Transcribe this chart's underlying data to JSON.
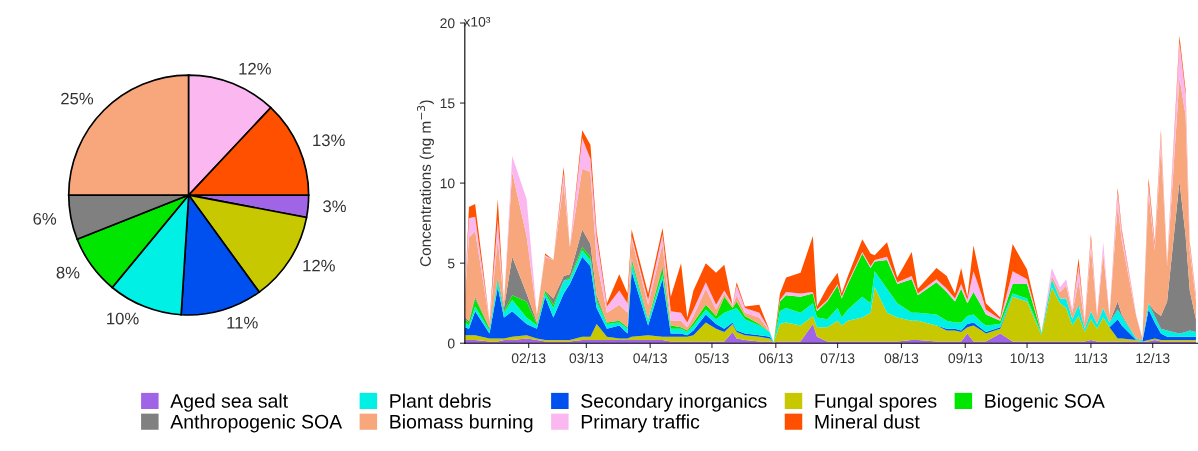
{
  "chart_data": [
    {
      "type": "pie",
      "legend": "bottom",
      "categories": [
        "Aged sea salt",
        "Fungal spores",
        "Secondary inorganics",
        "Plant debris",
        "Biogenic SOA",
        "Anthropogenic SOA",
        "Biomass burning",
        "Primary traffic",
        "Mineral dust"
      ],
      "values": [
        3,
        12,
        11,
        10,
        8,
        6,
        25,
        12,
        13
      ],
      "value_labels": [
        "3%",
        "12%",
        "11%",
        "10%",
        "8%",
        "6%",
        "25%",
        "12%",
        "13%"
      ],
      "colors": [
        "#a064e6",
        "#c8c800",
        "#0050f0",
        "#00f0e6",
        "#00e600",
        "#808080",
        "#f8a77c",
        "#fbb8f0",
        "#ff5000"
      ]
    },
    {
      "type": "area",
      "stacked": true,
      "ylabel": "Concentrations (ng m$^{−3}$)",
      "xlim": [
        "2013-01-01",
        "2013-12-23"
      ],
      "ylim": [
        0,
        20
      ],
      "xticks": [
        {
          "value": "2013-02-01",
          "label": "02/13"
        },
        {
          "value": "2013-03-01",
          "label": "03/13"
        },
        {
          "value": "2013-04-01",
          "label": "04/13"
        },
        {
          "value": "2013-05-01",
          "label": "05/13"
        },
        {
          "value": "2013-06-01",
          "label": "06/13"
        },
        {
          "value": "2013-07-01",
          "label": "07/13"
        },
        {
          "value": "2013-08-01",
          "label": "08/13"
        },
        {
          "value": "2013-09-01",
          "label": "09/13"
        },
        {
          "value": "2013-10-01",
          "label": "10/13"
        },
        {
          "value": "2013-11-01",
          "label": "11/13"
        },
        {
          "value": "2013-12-01",
          "label": "12/13"
        }
      ],
      "yticks": [
        0,
        5,
        10,
        15,
        20
      ],
      "annotations": [
        "x10³"
      ],
      "x": [
        "2013-01-01",
        "2013-01-03",
        "2013-01-06",
        "2013-01-13",
        "2013-01-17",
        "2013-01-20",
        "2013-01-24",
        "2013-01-31",
        "2013-02-05",
        "2013-02-09",
        "2013-02-13",
        "2013-02-18",
        "2013-02-21",
        "2013-02-27",
        "2013-03-03",
        "2013-03-06",
        "2013-03-11",
        "2013-03-17",
        "2013-03-21",
        "2013-03-23",
        "2013-03-31",
        "2013-04-07",
        "2013-04-11",
        "2013-04-16",
        "2013-04-19",
        "2013-04-22",
        "2013-04-28",
        "2013-05-03",
        "2013-05-07",
        "2013-05-11",
        "2013-05-13",
        "2013-05-17",
        "2013-05-24",
        "2013-05-29",
        "2013-05-31",
        "2013-06-03",
        "2013-06-06",
        "2013-06-13",
        "2013-06-19",
        "2013-06-21",
        "2013-06-26",
        "2013-07-01",
        "2013-07-03",
        "2013-07-06",
        "2013-07-13",
        "2013-07-17",
        "2013-07-19",
        "2013-07-25",
        "2013-07-30",
        "2013-08-06",
        "2013-08-09",
        "2013-08-18",
        "2013-08-23",
        "2013-08-27",
        "2013-08-30",
        "2013-09-02",
        "2013-09-05",
        "2013-09-09",
        "2013-09-11",
        "2013-09-18",
        "2013-09-24",
        "2013-10-01",
        "2013-10-08",
        "2013-10-13",
        "2013-10-17",
        "2013-10-20",
        "2013-10-23",
        "2013-10-26",
        "2013-10-29",
        "2013-11-01",
        "2013-11-04",
        "2013-11-07",
        "2013-11-10",
        "2013-11-14",
        "2013-11-16",
        "2013-11-23",
        "2013-11-26",
        "2013-11-29",
        "2013-12-02",
        "2013-12-05",
        "2013-12-08",
        "2013-12-14",
        "2013-12-17",
        "2013-12-19",
        "2013-12-22"
      ],
      "series": [
        {
          "color": "#a064e6",
          "values": [
            0.2,
            0.2,
            0.2,
            0.1,
            0.1,
            0.2,
            0.2,
            0.3,
            0.2,
            0.1,
            0.1,
            0.1,
            0.1,
            0.2,
            0.2,
            0.2,
            0.2,
            0.2,
            0.2,
            0.2,
            0.2,
            0.2,
            0.1,
            0.1,
            0.1,
            0.1,
            0.1,
            0.1,
            0.1,
            0.7,
            0.3,
            0.2,
            0.1,
            0.1,
            0.05,
            0.1,
            0.1,
            0.1,
            1.2,
            0.4,
            0.1,
            0.1,
            0.1,
            0.1,
            0.1,
            0.1,
            0.1,
            0.1,
            0.1,
            0.2,
            0.2,
            0.1,
            0.1,
            0.1,
            0.1,
            0.6,
            0.1,
            0.1,
            0.1,
            0.6,
            0.1,
            0.1,
            0.1,
            0.1,
            0.1,
            0.1,
            0.1,
            0.1,
            0.1,
            0.2,
            0.1,
            0.1,
            0.1,
            0.1,
            0.1,
            0.1,
            0.1,
            0.1,
            0.2,
            0.1,
            0.1,
            0.1,
            0.1,
            0.1,
            0.1
          ]
        },
        {
          "color": "#c8c800",
          "values": [
            0.3,
            0.3,
            0.3,
            0.2,
            0.2,
            0.1,
            0.2,
            0.2,
            0.1,
            0.1,
            0.1,
            0.1,
            0.1,
            0.2,
            0.2,
            1.0,
            0.2,
            0.1,
            0.1,
            0.2,
            0.3,
            0.2,
            0.3,
            0.3,
            0.3,
            0.4,
            1.2,
            0.8,
            0.6,
            0.5,
            0.4,
            0.3,
            0.3,
            0.2,
            0,
            1.1,
            1.2,
            1.0,
            0.5,
            0.6,
            0.9,
            1.3,
            1.0,
            1.3,
            1.5,
            1.8,
            3.4,
            1.8,
            1.5,
            1.2,
            1.2,
            1.0,
            0.7,
            0.7,
            0.6,
            0.4,
            1.0,
            0.7,
            0.5,
            0.3,
            2.8,
            2.5,
            0.4,
            3.4,
            2.4,
            2.1,
            1.0,
            1.6,
            0.6,
            1.3,
            0.8,
            1.5,
            0.9,
            0.2,
            0.2,
            0.1,
            0,
            0.1,
            0.1,
            0.1,
            0.1,
            0.1,
            0.1,
            0.1,
            0.1
          ]
        },
        {
          "color": "#0050f0",
          "values": [
            0.5,
            0.4,
            1.5,
            0.3,
            3.2,
            1.3,
            1.6,
            0.7,
            0.6,
            2.7,
            1.4,
            2.9,
            3.5,
            5.0,
            4.4,
            1.0,
            0.5,
            0.8,
            0.3,
            4.1,
            0.6,
            3.6,
            0.2,
            0.2,
            0.1,
            0.3,
            0.5,
            0.3,
            0.2,
            0.1,
            0.1,
            0.1,
            0.1,
            0.1,
            0,
            0,
            0,
            0,
            0,
            0,
            0,
            0,
            0,
            0,
            0,
            0,
            0,
            0,
            0,
            0,
            0,
            0,
            0.1,
            0.1,
            0.1,
            0.2,
            0.2,
            0.1,
            0.1,
            0.1,
            0,
            0,
            0,
            0,
            0,
            0,
            0,
            0,
            0,
            0,
            0,
            0,
            0,
            1.2,
            0.8,
            0,
            0,
            1.9,
            1.0,
            0.4,
            0.2,
            0.2,
            0.2,
            0.2,
            0.2
          ]
        },
        {
          "color": "#00f0e6",
          "values": [
            0.3,
            0.2,
            0.3,
            0.2,
            0.4,
            0.3,
            0.7,
            0.4,
            0.2,
            0.2,
            0.6,
            0.8,
            0.3,
            0.4,
            0.4,
            0.4,
            0.3,
            0.2,
            0.3,
            0.5,
            0.3,
            0.3,
            0.3,
            0.3,
            0.2,
            0.3,
            0.3,
            0.3,
            1.0,
            0.8,
            1.4,
            0.9,
            0.6,
            0.3,
            0,
            0.8,
            0.9,
            0.8,
            0.8,
            0.6,
            0.5,
            0.8,
            0.5,
            0.7,
            1.3,
            0.6,
            1.0,
            1.5,
            0.9,
            0.5,
            0.5,
            0.7,
            0.5,
            0.4,
            0.5,
            0.5,
            0.5,
            0.4,
            0.4,
            0.2,
            0.2,
            0.2,
            0.1,
            0.5,
            0.3,
            0.6,
            0.4,
            0.7,
            0.2,
            0.5,
            0.3,
            0.6,
            0.3,
            0.6,
            0.6,
            0.1,
            0.1,
            0.4,
            0.4,
            0.3,
            0.4,
            0.2,
            0.3,
            0.4,
            0.3
          ]
        },
        {
          "color": "#00e600",
          "values": [
            0.2,
            0.2,
            0.5,
            0.1,
            0.1,
            0.1,
            0.3,
            1.0,
            0.1,
            0.2,
            0.2,
            0,
            0.1,
            0.2,
            0.2,
            0.2,
            0.1,
            0.1,
            0.1,
            0.2,
            0.1,
            0.4,
            0.2,
            0.1,
            0.1,
            0.2,
            0.3,
            0.2,
            1.0,
            0.1,
            0.4,
            0.2,
            0.1,
            0,
            0,
            0.6,
            0.8,
            1.0,
            0.6,
            0.4,
            1.1,
            1.4,
            1.2,
            1.6,
            2.7,
            2.2,
            0.6,
            1.8,
            1.2,
            2.1,
            1.1,
            2.0,
            1.8,
            1.3,
            2.1,
            0.8,
            1.4,
            1.0,
            0.7,
            0.2,
            0.6,
            0.9,
            0.05,
            0,
            0,
            0,
            0,
            0,
            0,
            0,
            0,
            0,
            0,
            0,
            0,
            0,
            0,
            0,
            0,
            0,
            0,
            0,
            0,
            0,
            0
          ]
        },
        {
          "color": "#808080",
          "values": [
            0.1,
            0.1,
            0.1,
            0.05,
            0.1,
            0.2,
            2.4,
            0.5,
            0.1,
            0,
            0.4,
            0.3,
            0.2,
            1.1,
            0.8,
            0.2,
            0,
            0,
            0,
            0.1,
            0,
            0.1,
            0,
            0,
            0,
            0,
            0,
            0,
            0,
            0,
            0,
            0,
            0,
            0,
            0,
            0,
            0,
            0,
            0,
            0,
            0,
            0,
            0,
            0,
            0,
            0,
            0,
            0,
            0,
            0,
            0,
            0,
            0,
            0,
            0,
            0,
            0,
            0,
            0,
            0,
            0,
            0,
            0,
            0,
            0,
            0,
            0,
            0,
            0,
            0,
            0,
            0,
            0,
            0.5,
            0.1,
            0,
            0,
            0,
            0.3,
            0.8,
            1.8,
            9.5,
            6.0,
            2.5,
            0.8
          ]
        },
        {
          "color": "#f8a77c",
          "values": [
            1.2,
            5.2,
            4.1,
            0.4,
            2.4,
            0.3,
            5.3,
            3.6,
            0.5,
            2.1,
            2.4,
            5.8,
            1.7,
            3.8,
            4.5,
            2.2,
            0.6,
            1.0,
            0.9,
            1.2,
            0.9,
            1.4,
            0.3,
            0.4,
            0.2,
            0.4,
            1.0,
            0.4,
            0.2,
            0.1,
            0.4,
            0.2,
            0.4,
            0.05,
            0,
            0,
            0,
            0,
            0,
            0,
            0,
            0,
            0,
            0,
            0,
            0,
            0,
            0,
            0,
            0,
            0,
            0,
            0,
            0,
            0,
            0,
            0,
            0,
            0,
            0,
            0,
            0,
            0,
            0.2,
            0.4,
            0.8,
            0.4,
            1.5,
            0.4,
            4.0,
            0.5,
            3.4,
            0.4,
            6.0,
            4.6,
            1.4,
            0.1,
            6.9,
            3.8,
            10.7,
            2.2,
            6.5,
            7.5,
            2.5,
            1.2
          ]
        },
        {
          "color": "#fbb8f0",
          "values": [
            0.1,
            1.2,
            0.9,
            0.05,
            1.2,
            0,
            1.0,
            2.3,
            0,
            0.1,
            0,
            0.6,
            0,
            1.9,
            0.8,
            1.4,
            0.4,
            0.9,
            0.6,
            0.2,
            0.3,
            0.6,
            0.6,
            0.5,
            0.3,
            0.4,
            0.4,
            0.3,
            0.2,
            0.1,
            0.6,
            0.3,
            0.3,
            0.05,
            0,
            0.1,
            0.2,
            0.2,
            0.1,
            0.1,
            0.1,
            0.1,
            0.1,
            0.1,
            0.1,
            0.1,
            0.1,
            0.2,
            0.1,
            0.2,
            0.1,
            0.2,
            0.2,
            0.2,
            0.3,
            0.2,
            1.3,
            0.7,
            0.3,
            0.1,
            0.8,
            0.3,
            0.05,
            0.5,
            0.3,
            0.4,
            0.2,
            0.9,
            0.1,
            0.5,
            0.1,
            0.7,
            0,
            0.8,
            0.5,
            0.1,
            0,
            0.5,
            0.3,
            0.6,
            0.1,
            2.2,
            1.3,
            0.3,
            0.2
          ]
        },
        {
          "color": "#ff5000",
          "values": [
            0.1,
            0.7,
            0.8,
            0,
            1.3,
            0,
            0,
            0,
            0,
            0.1,
            0,
            0.4,
            0,
            0.5,
            0.9,
            0.4,
            0.2,
            1.0,
            0.6,
            0.4,
            0.4,
            0.4,
            0.9,
            3.1,
            0.3,
            1.2,
            1.2,
            2.0,
            1.6,
            0,
            0.2,
            0.1,
            0.5,
            0,
            0,
            0.4,
            0.9,
            1.3,
            3.5,
            0.2,
            0.8,
            0.7,
            0.2,
            0.4,
            0.8,
            0.8,
            0.3,
            0.9,
            0.3,
            1.5,
            0.3,
            0.7,
            0.8,
            0.3,
            1.0,
            0.2,
            1.6,
            0.7,
            0.4,
            0.1,
            1.7,
            0.6,
            0,
            0,
            0,
            0,
            0,
            0.5,
            0,
            0.3,
            0,
            0,
            0,
            0.3,
            0.2,
            0,
            0,
            0.4,
            0.2,
            0.3,
            0.1,
            0.4,
            0.3,
            0.2,
            0.1
          ]
        }
      ]
    }
  ]
}
